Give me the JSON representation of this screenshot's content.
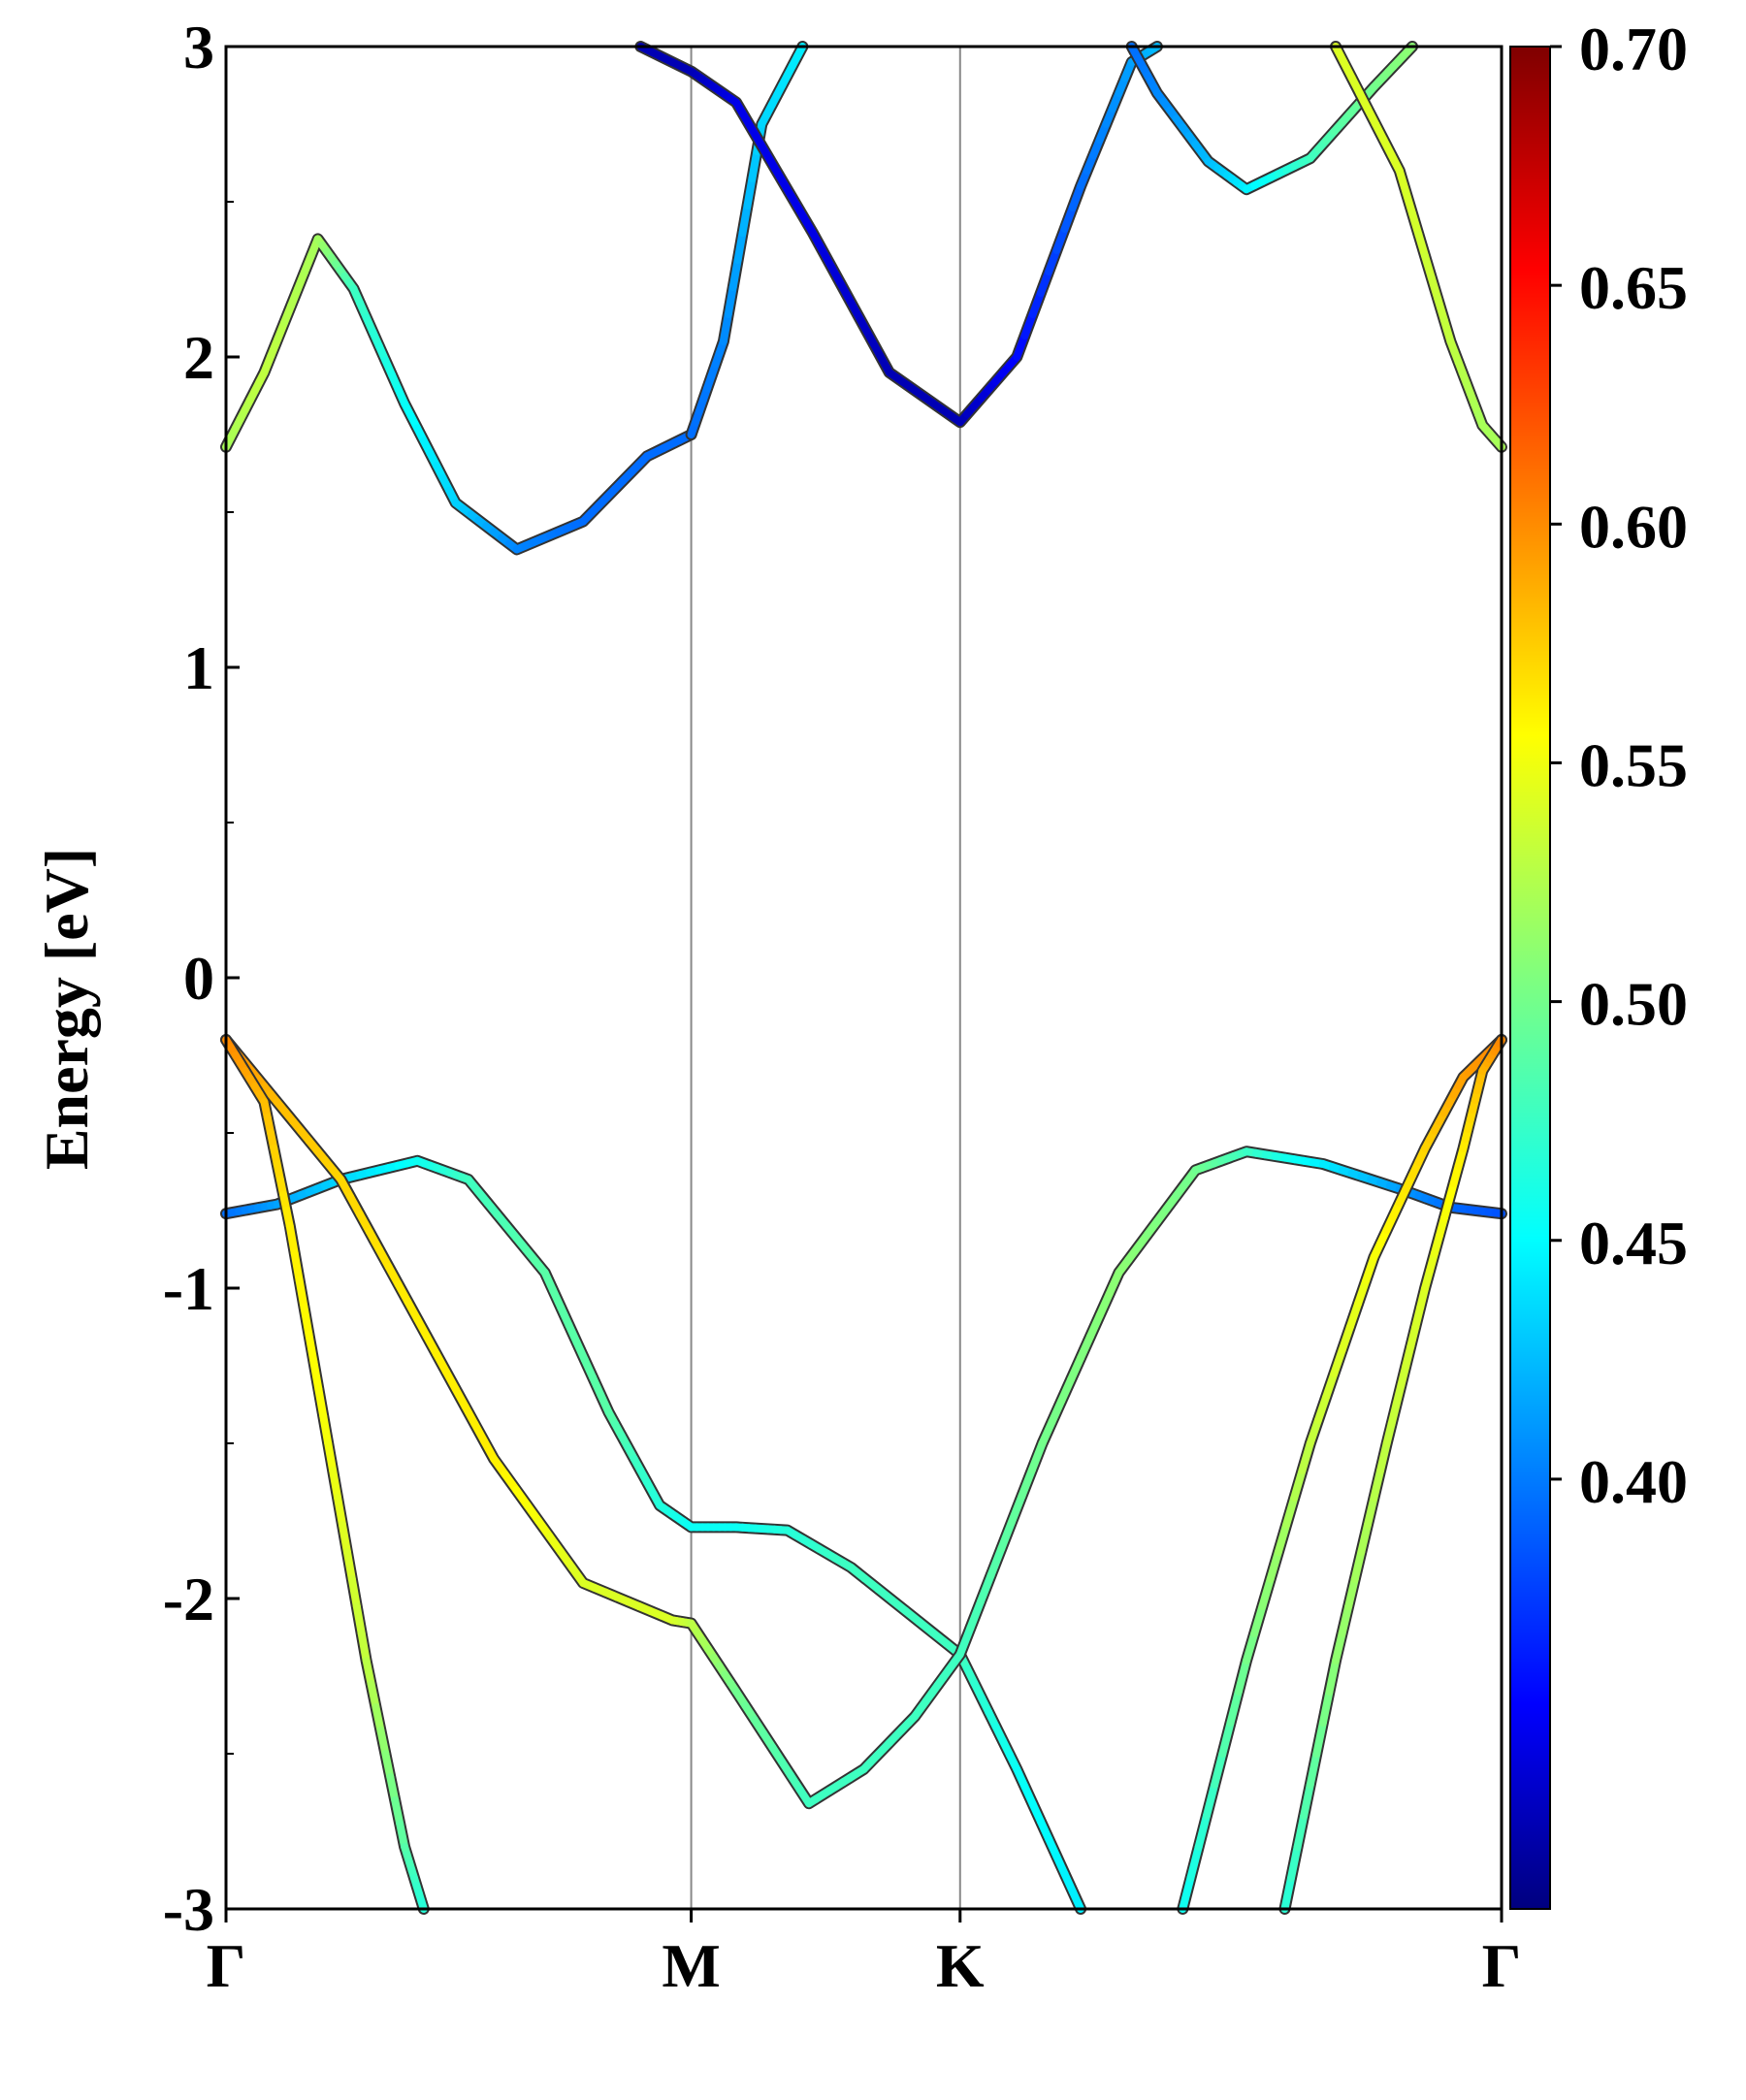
{
  "chart_data": {
    "type": "line",
    "title": "",
    "ylabel": "Energy [eV]",
    "xlabel": "",
    "ylim": [
      -3,
      3
    ],
    "grid": false,
    "x_ticks": [
      {
        "label": "Γ",
        "k": 0.0
      },
      {
        "label": "M",
        "k": 0.3647
      },
      {
        "label": "K",
        "k": 0.5755
      },
      {
        "label": "Γ",
        "k": 1.0
      }
    ],
    "y_ticks": [
      "3",
      "2",
      "1",
      "0",
      "-1",
      "-2",
      "-3"
    ],
    "y_tick_values": [
      3,
      2,
      1,
      0,
      -1,
      -2,
      -3
    ],
    "colorbar": {
      "colormap": "jet",
      "range": [
        0.31,
        0.7
      ],
      "tick_labels": [
        "0.70",
        "0.65",
        "0.60",
        "0.55",
        "0.50",
        "0.45",
        "0.40"
      ],
      "tick_values": [
        0.7,
        0.65,
        0.6,
        0.55,
        0.5,
        0.45,
        0.4
      ]
    },
    "series": [
      {
        "points": [
          [
            0.0,
            1.71,
            0.52
          ],
          [
            0.03,
            1.95,
            0.53
          ],
          [
            0.072,
            2.38,
            0.52
          ],
          [
            0.1,
            2.22,
            0.48
          ],
          [
            0.14,
            1.85,
            0.46
          ],
          [
            0.18,
            1.53,
            0.44
          ],
          [
            0.228,
            1.38,
            0.41
          ],
          [
            0.28,
            1.47,
            0.4
          ],
          [
            0.33,
            1.68,
            0.4
          ],
          [
            0.3647,
            1.75,
            0.4
          ]
        ]
      },
      {
        "points": [
          [
            0.3647,
            1.75,
            0.4
          ],
          [
            0.39,
            2.05,
            0.41
          ],
          [
            0.42,
            2.75,
            0.44
          ],
          [
            0.452,
            3.0,
            0.45
          ]
        ]
      },
      {
        "points": [
          [
            0.325,
            3.0,
            0.33
          ],
          [
            0.3647,
            2.92,
            0.33
          ],
          [
            0.4,
            2.82,
            0.35
          ],
          [
            0.46,
            2.4,
            0.35
          ],
          [
            0.52,
            1.95,
            0.33
          ],
          [
            0.5755,
            1.79,
            0.33
          ],
          [
            0.62,
            2.0,
            0.36
          ],
          [
            0.67,
            2.55,
            0.4
          ],
          [
            0.71,
            2.95,
            0.42
          ],
          [
            0.73,
            3.0,
            0.43
          ]
        ]
      },
      {
        "points": [
          [
            0.71,
            3.0,
            0.4
          ],
          [
            0.73,
            2.85,
            0.41
          ],
          [
            0.77,
            2.63,
            0.43
          ],
          [
            0.8,
            2.54,
            0.45
          ],
          [
            0.85,
            2.64,
            0.48
          ],
          [
            0.9,
            2.87,
            0.5
          ],
          [
            0.93,
            3.0,
            0.51
          ]
        ]
      },
      {
        "points": [
          [
            0.87,
            3.0,
            0.54
          ],
          [
            0.92,
            2.6,
            0.54
          ],
          [
            0.96,
            2.05,
            0.53
          ],
          [
            0.985,
            1.78,
            0.52
          ],
          [
            1.0,
            1.71,
            0.52
          ]
        ]
      },
      {
        "points": [
          [
            0.0,
            -0.76,
            0.4
          ],
          [
            0.04,
            -0.73,
            0.42
          ],
          [
            0.09,
            -0.65,
            0.44
          ],
          [
            0.15,
            -0.59,
            0.46
          ],
          [
            0.19,
            -0.65,
            0.48
          ],
          [
            0.25,
            -0.95,
            0.49
          ],
          [
            0.3,
            -1.4,
            0.49
          ],
          [
            0.34,
            -1.7,
            0.47
          ],
          [
            0.3647,
            -1.77,
            0.46
          ],
          [
            0.4,
            -1.77,
            0.46
          ],
          [
            0.44,
            -1.78,
            0.47
          ],
          [
            0.49,
            -1.9,
            0.48
          ],
          [
            0.5755,
            -2.18,
            0.48
          ],
          [
            0.62,
            -2.55,
            0.46
          ],
          [
            0.67,
            -3.0,
            0.45
          ]
        ]
      },
      {
        "points": [
          [
            0.0,
            -0.2,
            0.6
          ],
          [
            0.04,
            -0.4,
            0.58
          ],
          [
            0.09,
            -0.65,
            0.57
          ],
          [
            0.15,
            -1.1,
            0.56
          ],
          [
            0.21,
            -1.55,
            0.56
          ],
          [
            0.28,
            -1.95,
            0.54
          ],
          [
            0.35,
            -2.07,
            0.54
          ],
          [
            0.3647,
            -2.08,
            0.53
          ],
          [
            0.4,
            -2.3,
            0.5
          ],
          [
            0.457,
            -2.66,
            0.48
          ],
          [
            0.5,
            -2.55,
            0.48
          ],
          [
            0.54,
            -2.38,
            0.48
          ],
          [
            0.5755,
            -2.18,
            0.48
          ],
          [
            0.64,
            -1.5,
            0.5
          ],
          [
            0.7,
            -0.95,
            0.51
          ],
          [
            0.76,
            -0.62,
            0.5
          ],
          [
            0.8,
            -0.56,
            0.48
          ],
          [
            0.86,
            -0.6,
            0.45
          ],
          [
            0.92,
            -0.68,
            0.42
          ],
          [
            0.96,
            -0.74,
            0.4
          ],
          [
            1.0,
            -0.76,
            0.39
          ]
        ]
      },
      {
        "points": [
          [
            0.0,
            -0.2,
            0.6
          ],
          [
            0.03,
            -0.4,
            0.58
          ],
          [
            0.05,
            -0.8,
            0.56
          ],
          [
            0.08,
            -1.5,
            0.55
          ],
          [
            0.11,
            -2.2,
            0.53
          ],
          [
            0.14,
            -2.8,
            0.49
          ],
          [
            0.155,
            -3.0,
            0.47
          ]
        ]
      },
      {
        "points": [
          [
            0.75,
            -3.0,
            0.46
          ],
          [
            0.8,
            -2.2,
            0.5
          ],
          [
            0.85,
            -1.5,
            0.53
          ],
          [
            0.9,
            -0.9,
            0.55
          ],
          [
            0.94,
            -0.55,
            0.57
          ],
          [
            0.97,
            -0.32,
            0.59
          ],
          [
            1.0,
            -0.2,
            0.6
          ]
        ]
      },
      {
        "points": [
          [
            0.83,
            -3.0,
            0.47
          ],
          [
            0.87,
            -2.2,
            0.51
          ],
          [
            0.91,
            -1.5,
            0.53
          ],
          [
            0.94,
            -1.0,
            0.54
          ],
          [
            0.97,
            -0.55,
            0.56
          ],
          [
            0.985,
            -0.3,
            0.58
          ],
          [
            1.0,
            -0.2,
            0.6
          ]
        ]
      }
    ]
  }
}
